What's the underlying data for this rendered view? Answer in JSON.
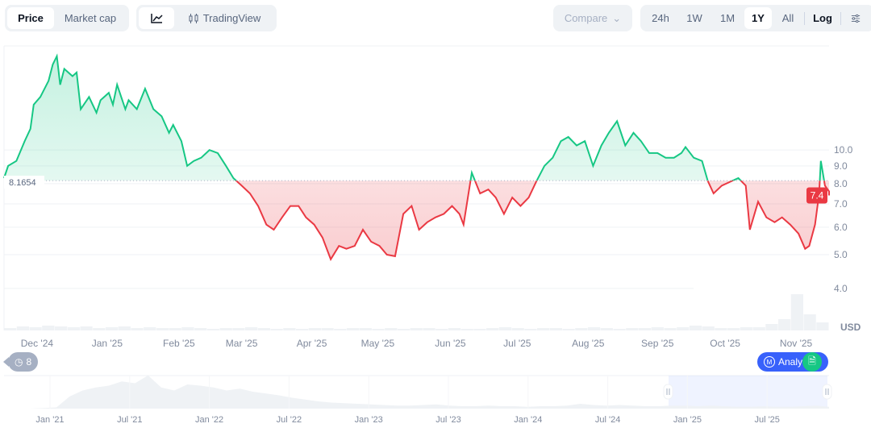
{
  "toolbar": {
    "view_tabs": [
      "Price",
      "Market cap"
    ],
    "chart_type_tradingview": "TradingView",
    "compare_label": "Compare",
    "ranges": [
      "24h",
      "1W",
      "1M",
      "1Y",
      "All"
    ],
    "active_range": "1Y",
    "log_label": "Log"
  },
  "colors": {
    "up": "#16c784",
    "down": "#ea3943",
    "accent": "#3861fb"
  },
  "chart_data": {
    "type": "line",
    "title": "",
    "scale": "log",
    "baseline_value": 8.1654,
    "baseline_label": "8.1654",
    "current_price_label": "7.4",
    "currency_label": "USD",
    "y_ticks": [
      "10.0",
      "9.0",
      "8.0",
      "7.0",
      "6.0",
      "5.0",
      "4.0"
    ],
    "y_tick_values": [
      10,
      9,
      8,
      7,
      6,
      5,
      4
    ],
    "ylim": [
      3.4,
      22
    ],
    "x_tick_labels": [
      "Dec '24",
      "Jan '25",
      "Feb '25",
      "Mar '25",
      "Apr '25",
      "May '25",
      "Jun '25",
      "Jul '25",
      "Aug '25",
      "Sep '25",
      "Oct '25",
      "Nov '25"
    ],
    "x_tick_positions_fraction_of_year": [
      0.04,
      0.125,
      0.212,
      0.288,
      0.373,
      0.453,
      0.541,
      0.622,
      0.708,
      0.792,
      0.874,
      0.96
    ],
    "values": [
      8.3,
      9.0,
      9.3,
      10.6,
      11.5,
      13.5,
      14.2,
      15.8,
      17.6,
      18.6,
      15.4,
      17.1,
      16.3,
      16.7,
      13.1,
      14.2,
      12.8,
      13.9,
      14.6,
      13.5,
      15.4,
      14.2,
      13.1,
      13.9,
      13.1,
      15.0,
      13.1,
      12.5,
      11.2,
      11.8,
      10.6,
      9.0,
      9.3,
      9.5,
      10.0,
      9.8,
      9.0,
      8.3,
      7.9,
      7.5,
      6.9,
      6.1,
      5.9,
      6.4,
      6.9,
      6.9,
      6.4,
      6.1,
      5.6,
      4.85,
      5.3,
      5.2,
      5.3,
      5.9,
      5.45,
      5.3,
      5.0,
      4.95,
      6.55,
      6.9,
      5.9,
      6.2,
      6.4,
      6.55,
      6.9,
      6.55,
      6.1,
      8.6,
      7.5,
      7.7,
      7.3,
      6.55,
      7.3,
      6.9,
      7.3,
      8.1,
      9.0,
      9.5,
      10.6,
      10.9,
      10.3,
      10.6,
      9.0,
      10.3,
      11.2,
      12.1,
      10.3,
      11.2,
      10.6,
      9.8,
      9.8,
      9.5,
      9.5,
      9.8,
      10.2,
      9.5,
      9.3,
      8.15,
      7.5,
      7.9,
      8.1,
      8.3,
      7.9,
      5.9,
      7.1,
      6.4,
      6.2,
      6.4,
      6.1,
      5.75,
      5.2,
      5.3,
      6.1,
      7.5,
      9.3,
      7.9,
      7.6,
      7.4
    ],
    "value_time_fraction": [
      0,
      0.005,
      0.015,
      0.025,
      0.032,
      0.036,
      0.044,
      0.054,
      0.059,
      0.064,
      0.068,
      0.073,
      0.083,
      0.088,
      0.093,
      0.103,
      0.112,
      0.117,
      0.127,
      0.132,
      0.137,
      0.142,
      0.147,
      0.151,
      0.161,
      0.171,
      0.181,
      0.191,
      0.2,
      0.205,
      0.215,
      0.222,
      0.23,
      0.239,
      0.249,
      0.259,
      0.269,
      0.278,
      0.288,
      0.298,
      0.308,
      0.318,
      0.327,
      0.337,
      0.347,
      0.357,
      0.366,
      0.376,
      0.386,
      0.396,
      0.406,
      0.415,
      0.425,
      0.435,
      0.445,
      0.455,
      0.464,
      0.474,
      0.484,
      0.494,
      0.503,
      0.513,
      0.523,
      0.533,
      0.543,
      0.552,
      0.557,
      0.567,
      0.577,
      0.587,
      0.596,
      0.606,
      0.616,
      0.626,
      0.636,
      0.645,
      0.655,
      0.665,
      0.675,
      0.684,
      0.694,
      0.704,
      0.714,
      0.724,
      0.733,
      0.743,
      0.753,
      0.763,
      0.772,
      0.782,
      0.792,
      0.802,
      0.812,
      0.821,
      0.826,
      0.836,
      0.846,
      0.853,
      0.86,
      0.87,
      0.88,
      0.89,
      0.899,
      0.904,
      0.914,
      0.924,
      0.934,
      0.943,
      0.953,
      0.963,
      0.971,
      0.976,
      0.983,
      0.988,
      0.99,
      0.995,
      1.0,
      1.0
    ],
    "volume_relative": [
      3,
      5,
      4,
      6,
      5,
      4,
      5,
      3,
      4,
      5,
      3,
      4,
      3,
      3,
      4,
      3,
      2,
      3,
      3,
      4,
      3,
      2,
      3,
      2,
      3,
      3,
      2,
      3,
      3,
      2,
      3,
      2,
      3,
      3,
      2,
      3,
      2,
      2,
      3,
      4,
      3,
      2,
      3,
      3,
      2,
      3,
      4,
      3,
      2,
      3,
      3,
      4,
      3,
      4,
      6,
      5,
      3,
      3,
      4,
      4,
      8,
      14,
      45,
      20,
      10
    ],
    "navigator": {
      "x_tick_labels": [
        "Jan '21",
        "Jul '21",
        "Jan '22",
        "Jul '22",
        "Jan '23",
        "Jul '23",
        "Jan '24",
        "Jul '24",
        "Jan '25",
        "Jul '25"
      ],
      "values_relative": [
        0,
        0,
        0,
        1,
        2,
        20,
        30,
        35,
        38,
        45,
        42,
        55,
        35,
        30,
        40,
        38,
        35,
        30,
        33,
        28,
        25,
        22,
        18,
        15,
        12,
        10,
        9,
        8,
        7,
        6,
        5,
        5,
        6,
        7,
        5,
        4,
        4,
        5,
        4,
        4,
        3,
        4,
        4,
        5,
        8,
        6,
        5,
        6,
        5,
        4,
        4,
        5,
        5,
        4,
        5,
        4,
        3,
        3,
        4,
        3,
        3,
        4,
        5,
        3
      ],
      "selected_window": [
        "Nov '24",
        "Nov '25"
      ]
    }
  },
  "badges": {
    "history_count": "8",
    "analysis_label": "Analy"
  }
}
